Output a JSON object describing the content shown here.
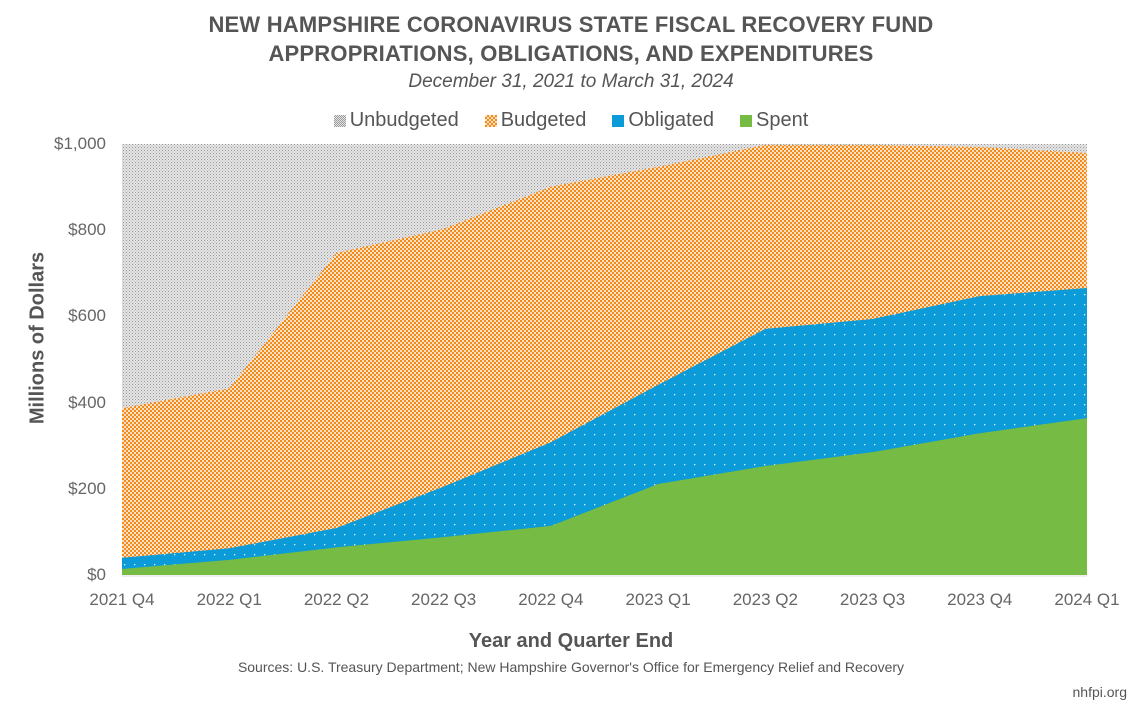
{
  "chart_data": {
    "type": "area",
    "stacked": false,
    "title": "NEW HAMPSHIRE CORONAVIRUS STATE FISCAL RECOVERY FUND",
    "title_line2": "APPROPRIATIONS, OBLIGATIONS, AND EXPENDITURES",
    "subtitle": "December 31, 2021 to March 31, 2024",
    "xlabel": "Year and Quarter End",
    "ylabel": "Millions of Dollars",
    "ylim": [
      0,
      1000
    ],
    "yticks": [
      0,
      200,
      400,
      600,
      800,
      1000
    ],
    "ytick_labels": [
      "$0",
      "$200",
      "$400",
      "$600",
      "$800",
      "$1,000"
    ],
    "categories": [
      "2021 Q4",
      "2022 Q1",
      "2022 Q2",
      "2022 Q3",
      "2022 Q4",
      "2023 Q1",
      "2023 Q2",
      "2023 Q3",
      "2023 Q4",
      "2024 Q1"
    ],
    "legend_position": "top-center",
    "grid": false,
    "series": [
      {
        "name": "Unbudgeted",
        "color": "#b3b3b3",
        "pattern": "fine-dots",
        "values": [
          1000,
          1000,
          1000,
          1000,
          1000,
          1000,
          1000,
          1000,
          1000,
          1000
        ]
      },
      {
        "name": "Budgeted",
        "color": "#f28a1c",
        "pattern": "checker",
        "values": [
          387,
          433,
          747,
          803,
          901,
          947,
          998,
          998,
          993,
          979
        ]
      },
      {
        "name": "Obligated",
        "color": "#0a9bd8",
        "pattern": "white-dots",
        "values": [
          40,
          62,
          109,
          205,
          308,
          441,
          571,
          594,
          647,
          666
        ]
      },
      {
        "name": "Spent",
        "color": "#76bb43",
        "pattern": "solid",
        "values": [
          14,
          35,
          64,
          88,
          114,
          211,
          253,
          285,
          329,
          364
        ]
      }
    ],
    "source": "Sources: U.S. Treasury Department; New Hampshire Governor's Office for Emergency Relief and Recovery",
    "credit": "nhfpi.org"
  }
}
